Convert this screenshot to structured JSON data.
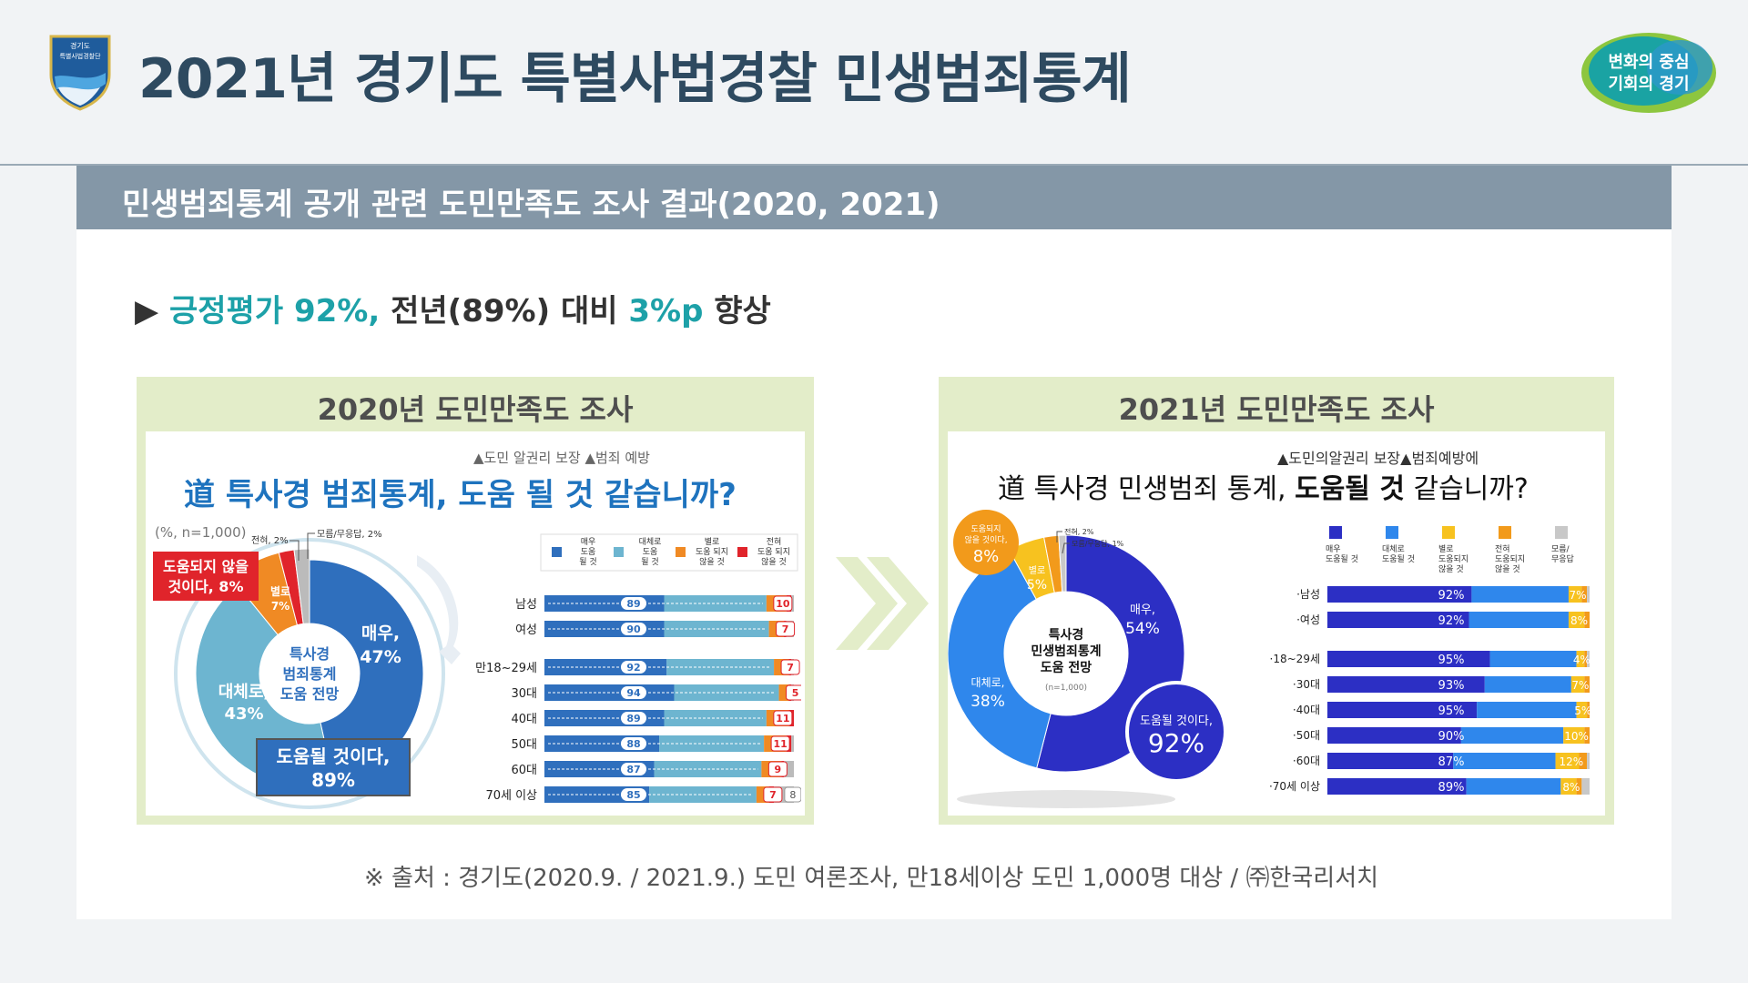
{
  "page": {
    "title": "2021년 경기도 특별사법경찰 민생범죄통계",
    "logo_text": "경기도\n특별사법경찰단",
    "slogan_line1": "변화의 중심",
    "slogan_line2": "기회의 경기",
    "section_title": "민생범죄통계 공개 관련 도민만족도 조사 결과(2020, 2021)",
    "headline_marker": "▶",
    "headline_part1": "긍정평가 92%,",
    "headline_part2": " 전년(89%) 대비 ",
    "headline_part3": "3%p",
    "headline_part4": " 향상",
    "source": "※ 출처 : 경기도(2020.9.  / 2021.9.) 도민 여론조사, 만18세이상 도민 1,000명 대상 / ㈜한국리서치",
    "colors": {
      "title": "#2e4a60",
      "accent_teal": "#1da1a8",
      "section_bar": "#8497a7",
      "survey_bg": "#e3edc9"
    }
  },
  "chart_data": [
    {
      "type": "pie",
      "panel_title": "2020년 도민만족도 조사",
      "subtitle": "▲도민 알권리 보장 ▲범죄 예방",
      "question": "道 특사경 범죄통계, 도움 될 것 같습니까?",
      "note": "(%, n=1,000)",
      "center_label": [
        "특사경",
        "범죄통계",
        "도움 전망"
      ],
      "slices": [
        {
          "name": "매우",
          "value": 47,
          "label": "매우,",
          "value_label": "47%",
          "color": "#2f6fbd"
        },
        {
          "name": "대체로",
          "value": 43,
          "label": "대체로,",
          "value_label": "43%",
          "color": "#6db5d0"
        },
        {
          "name": "별로",
          "value": 7,
          "label": "별로",
          "value_label": "7%",
          "color": "#f08a24"
        },
        {
          "name": "전혀",
          "value": 2,
          "label": "전혀, 2%",
          "color": "#e0242b"
        },
        {
          "name": "모름/무응답",
          "value": 2,
          "label": "모름/무응답, 2%",
          "color": "#bbbbbb"
        }
      ],
      "callout_negative": [
        "도움되지 않을",
        "것이다, 8%"
      ],
      "callout_positive": [
        "도움될 것이다,",
        "89%"
      ]
    },
    {
      "type": "bar",
      "stacked": true,
      "orientation": "horizontal",
      "legend": [
        {
          "name": "매우 도움 될 것",
          "lines": [
            "매우",
            "도움",
            "될 것"
          ],
          "color": "#2f6fbd"
        },
        {
          "name": "대체로 도움 될 것",
          "lines": [
            "대체로",
            "도움",
            "될 것"
          ],
          "color": "#6db5d0"
        },
        {
          "name": "별로 도움 되지 않을 것",
          "lines": [
            "별로",
            "도움 되지",
            "않을 것"
          ],
          "color": "#f08a24"
        },
        {
          "name": "전혀 도움 되지 않을 것",
          "lines": [
            "전혀",
            "도움 되지",
            "않을 것"
          ],
          "color": "#e0242b"
        }
      ],
      "categories": [
        "남성",
        "여성",
        "만18~29세",
        "30대",
        "40대",
        "50대",
        "60대",
        "70세 이상"
      ],
      "positive_labels": [
        89,
        90,
        92,
        94,
        89,
        88,
        87,
        85
      ],
      "negative_labels": [
        10,
        7,
        7,
        5,
        11,
        11,
        9,
        7
      ],
      "extra_label_last": "8",
      "series": [
        {
          "name": "매우 도움 될 것",
          "values": [
            48,
            48,
            49,
            52,
            48,
            46,
            44,
            42
          ]
        },
        {
          "name": "대체로 도움 될 것",
          "values": [
            41,
            42,
            43,
            42,
            41,
            42,
            43,
            43
          ]
        },
        {
          "name": "별로 도움 되지 않을 것",
          "values": [
            8,
            6,
            6,
            4,
            9,
            9,
            8,
            5
          ]
        },
        {
          "name": "전혀 도움 되지 않을 것",
          "values": [
            2,
            1,
            1,
            1,
            2,
            2,
            1,
            2
          ]
        },
        {
          "name": "모름/무응답",
          "values": [
            1,
            3,
            1,
            1,
            0,
            1,
            4,
            8
          ]
        }
      ]
    },
    {
      "type": "pie",
      "panel_title": "2021년 도민만족도 조사",
      "subtitle": "▲도민의알권리 보장▲범죄예방에",
      "question_part1": "道 특사경 민생범죄 통계, ",
      "question_part2": "도움될 것",
      "question_part3": " 같습니까?",
      "center_label": [
        "특사경",
        "민생범죄통계",
        "도움 전망"
      ],
      "center_note": "(n=1,000)",
      "slices": [
        {
          "name": "매우",
          "value": 54,
          "label": "매우,",
          "value_label": "54%",
          "color": "#2c2fc4"
        },
        {
          "name": "대체로",
          "value": 38,
          "label": "대체로,",
          "value_label": "38%",
          "color": "#2f87ec"
        },
        {
          "name": "별로",
          "value": 5,
          "label": "별로",
          "value_label": "5%",
          "color": "#f7c21f"
        },
        {
          "name": "전혀",
          "value": 2,
          "label": "전혀, 2%",
          "color": "#f29a1b"
        },
        {
          "name": "모름/무응답",
          "value": 1,
          "label": "모름/무응답, 1%",
          "color": "#c8c8c8"
        }
      ],
      "callout_negative": [
        "도움되지",
        "않을 것이다,",
        "8%"
      ],
      "callout_positive": [
        "도움될 것이다,",
        "92%"
      ]
    },
    {
      "type": "bar",
      "stacked": true,
      "orientation": "horizontal",
      "legend": [
        {
          "name": "매우 도움될 것",
          "lines": [
            "매우",
            "도움될 것"
          ],
          "color": "#2c2fc4"
        },
        {
          "name": "대체로 도움될 것",
          "lines": [
            "대체로",
            "도움될 것"
          ],
          "color": "#2f87ec"
        },
        {
          "name": "별로 도움되지 않을 것",
          "lines": [
            "별로",
            "도움되지",
            "않을 것"
          ],
          "color": "#f7c21f"
        },
        {
          "name": "전혀 도움되지 않을 것",
          "lines": [
            "전혀",
            "도움되지",
            "않을 것"
          ],
          "color": "#f29a1b"
        },
        {
          "name": "모름/무응답",
          "lines": [
            "모름/",
            "무응답"
          ],
          "color": "#c8c8c8"
        }
      ],
      "categories": [
        "·남성",
        "·여성",
        "·18~29세",
        "·30대",
        "·40대",
        "·50대",
        "·60대",
        "·70세 이상"
      ],
      "positive_labels": [
        "92%",
        "92%",
        "95%",
        "93%",
        "95%",
        "90%",
        "87%",
        "89%"
      ],
      "negative_labels": [
        "7%",
        "8%",
        "4%",
        "7%",
        "5%",
        "10%",
        "12%",
        "8%"
      ],
      "series": [
        {
          "name": "매우 도움될 것",
          "values": [
            55,
            54,
            62,
            60,
            57,
            51,
            48,
            53
          ]
        },
        {
          "name": "대체로 도움될 것",
          "values": [
            37,
            38,
            33,
            33,
            38,
            39,
            39,
            36
          ]
        },
        {
          "name": "별로 도움되지 않을 것",
          "values": [
            5,
            6,
            3,
            5,
            4,
            8,
            9,
            6
          ]
        },
        {
          "name": "전혀 도움되지 않을 것",
          "values": [
            2,
            2,
            1,
            2,
            1,
            2,
            3,
            2
          ]
        },
        {
          "name": "모름/무응답",
          "values": [
            1,
            0,
            1,
            0,
            0,
            0,
            1,
            3
          ]
        }
      ]
    }
  ]
}
